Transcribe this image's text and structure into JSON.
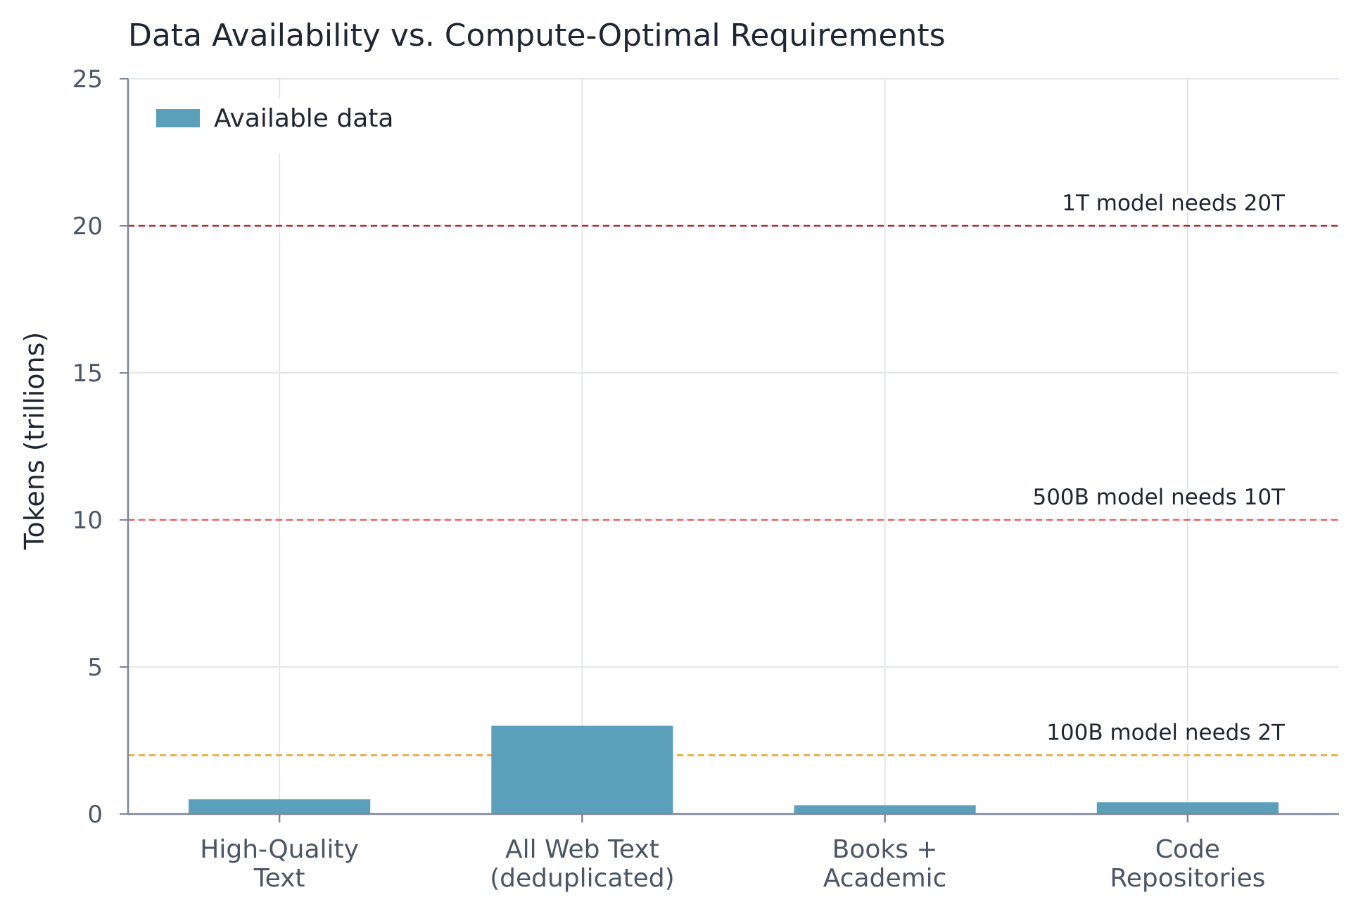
{
  "chart_data": {
    "type": "bar",
    "title": "Data Availability vs. Compute-Optimal Requirements",
    "xlabel": "",
    "ylabel": "Tokens (trillions)",
    "ylim": [
      0,
      25
    ],
    "yticks": [
      0,
      5,
      10,
      15,
      20,
      25
    ],
    "categories": [
      [
        "High-Quality",
        "Text"
      ],
      [
        "All Web Text",
        "(deduplicated)"
      ],
      [
        "Books +",
        "Academic"
      ],
      [
        "Code",
        "Repositories"
      ]
    ],
    "series": [
      {
        "name": "Available data",
        "color": "#5b9fba",
        "values": [
          0.5,
          3.0,
          0.3,
          0.4
        ]
      }
    ],
    "reference_lines": [
      {
        "value": 20,
        "label": "1T model needs 20T",
        "color": "#a93238"
      },
      {
        "value": 10,
        "label": "500B model needs 10T",
        "color": "#e0685c"
      },
      {
        "value": 2,
        "label": "100B model needs 2T",
        "color": "#f0a42e"
      }
    ],
    "grid": true,
    "legend_position": "top-left"
  }
}
